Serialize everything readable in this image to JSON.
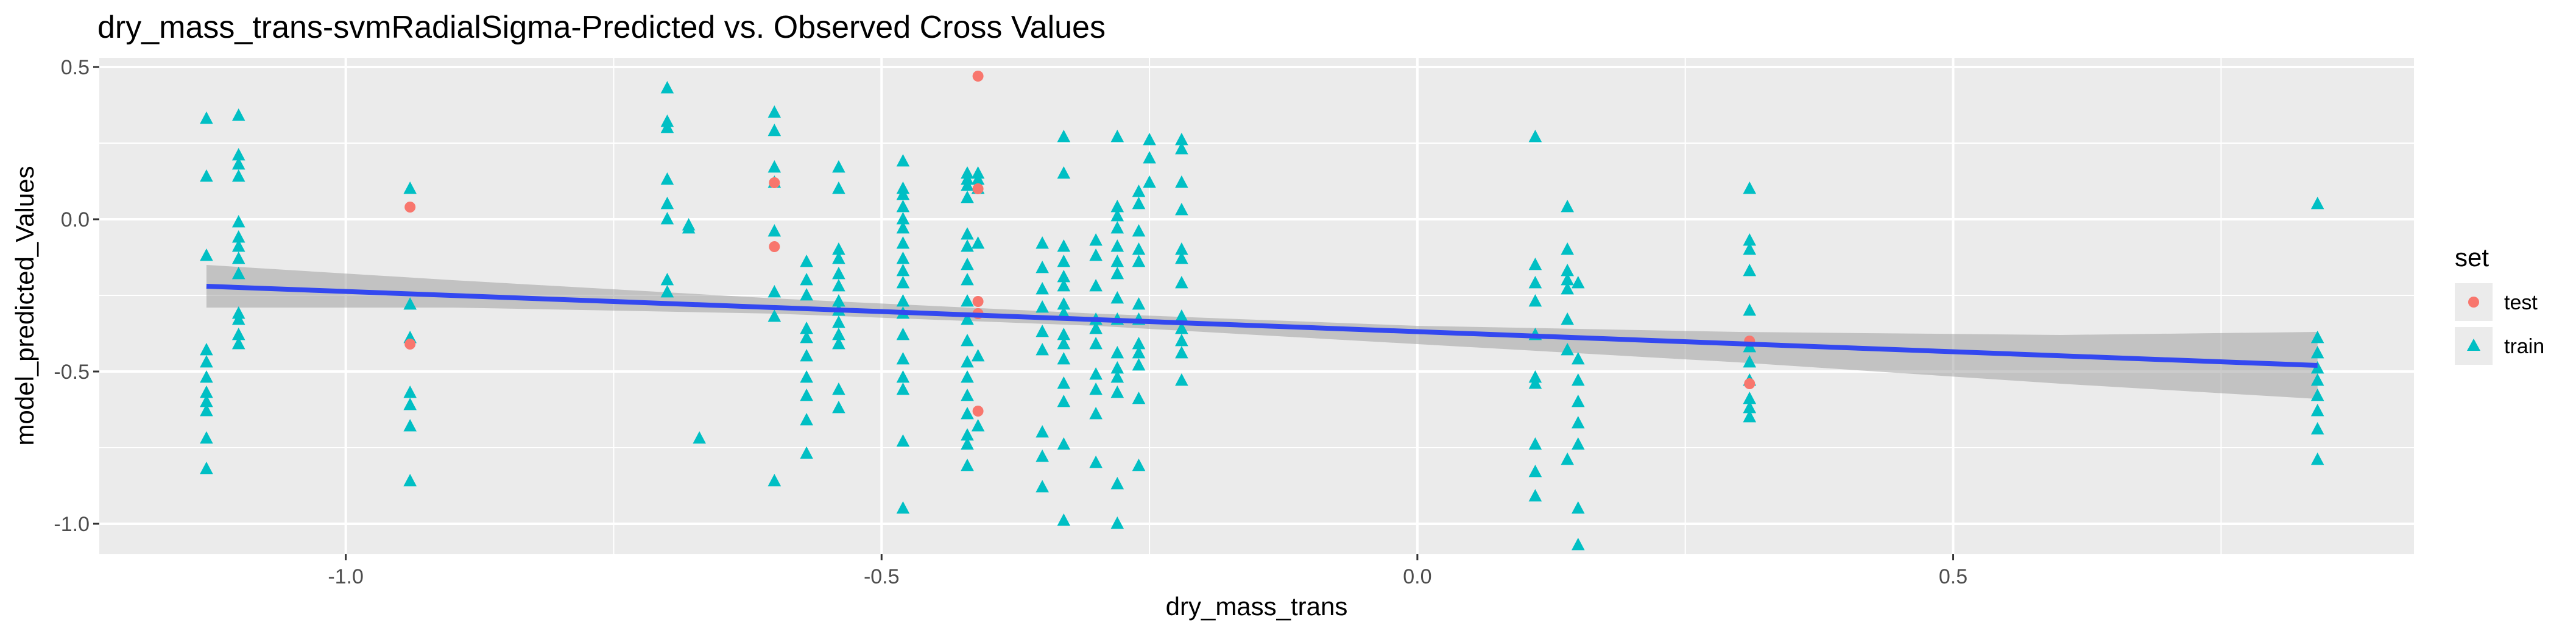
{
  "chart_data": {
    "type": "scatter",
    "title": "dry_mass_trans-svmRadialSigma-Predicted vs. Observed Cross Values",
    "xlabel": "dry_mass_trans",
    "ylabel": "model_predicted_Values",
    "xlim": [
      -1.23,
      0.93
    ],
    "ylim": [
      -1.1,
      0.53
    ],
    "x_ticks": [
      -1.0,
      -0.5,
      0.0,
      0.5
    ],
    "x_tick_labels": [
      "-1.0",
      "-0.5",
      "0.0",
      "0.5"
    ],
    "y_ticks": [
      0.5,
      0.0,
      -0.5,
      -1.0
    ],
    "y_tick_labels": [
      "0.5",
      "0.0",
      "-0.5",
      "-1.0"
    ],
    "grid": true,
    "legend": {
      "title": "set",
      "position": "right",
      "entries": [
        {
          "label": "test",
          "shape": "circle",
          "color": "#F8766D"
        },
        {
          "label": "train",
          "shape": "triangle",
          "color": "#00BFC4"
        }
      ]
    },
    "series": [
      {
        "name": "test",
        "color": "#F8766D",
        "shape": "circle",
        "points": [
          [
            -0.94,
            0.04
          ],
          [
            -0.94,
            -0.41
          ],
          [
            -0.6,
            0.12
          ],
          [
            -0.6,
            -0.09
          ],
          [
            -0.41,
            0.47
          ],
          [
            -0.41,
            0.1
          ],
          [
            -0.41,
            -0.27
          ],
          [
            -0.41,
            -0.31
          ],
          [
            -0.41,
            -0.63
          ],
          [
            0.31,
            -0.4
          ],
          [
            0.31,
            -0.54
          ]
        ]
      },
      {
        "name": "train",
        "color": "#00BFC4",
        "shape": "triangle",
        "points": [
          [
            -1.13,
            0.33
          ],
          [
            -1.13,
            0.14
          ],
          [
            -1.13,
            -0.12
          ],
          [
            -1.13,
            -0.43
          ],
          [
            -1.13,
            -0.47
          ],
          [
            -1.13,
            -0.52
          ],
          [
            -1.13,
            -0.57
          ],
          [
            -1.13,
            -0.6
          ],
          [
            -1.13,
            -0.63
          ],
          [
            -1.13,
            -0.72
          ],
          [
            -1.13,
            -0.82
          ],
          [
            -1.1,
            0.34
          ],
          [
            -1.1,
            0.21
          ],
          [
            -1.1,
            0.18
          ],
          [
            -1.1,
            0.14
          ],
          [
            -1.1,
            -0.01
          ],
          [
            -1.1,
            -0.06
          ],
          [
            -1.1,
            -0.09
          ],
          [
            -1.1,
            -0.13
          ],
          [
            -1.1,
            -0.18
          ],
          [
            -1.1,
            -0.31
          ],
          [
            -1.1,
            -0.33
          ],
          [
            -1.1,
            -0.38
          ],
          [
            -1.1,
            -0.41
          ],
          [
            -0.94,
            0.1
          ],
          [
            -0.94,
            -0.28
          ],
          [
            -0.94,
            -0.39
          ],
          [
            -0.94,
            -0.57
          ],
          [
            -0.94,
            -0.61
          ],
          [
            -0.94,
            -0.68
          ],
          [
            -0.94,
            -0.86
          ],
          [
            -0.7,
            0.43
          ],
          [
            -0.7,
            0.32
          ],
          [
            -0.7,
            0.3
          ],
          [
            -0.7,
            0.13
          ],
          [
            -0.7,
            0.05
          ],
          [
            -0.7,
            0.0
          ],
          [
            -0.7,
            -0.2
          ],
          [
            -0.7,
            -0.24
          ],
          [
            -0.68,
            -0.02
          ],
          [
            -0.68,
            -0.03
          ],
          [
            -0.67,
            -0.72
          ],
          [
            -0.6,
            0.35
          ],
          [
            -0.6,
            0.29
          ],
          [
            -0.6,
            0.17
          ],
          [
            -0.6,
            0.12
          ],
          [
            -0.6,
            -0.04
          ],
          [
            -0.6,
            -0.24
          ],
          [
            -0.6,
            -0.32
          ],
          [
            -0.6,
            -0.86
          ],
          [
            -0.57,
            -0.14
          ],
          [
            -0.57,
            -0.2
          ],
          [
            -0.57,
            -0.25
          ],
          [
            -0.57,
            -0.36
          ],
          [
            -0.57,
            -0.39
          ],
          [
            -0.57,
            -0.45
          ],
          [
            -0.57,
            -0.52
          ],
          [
            -0.57,
            -0.58
          ],
          [
            -0.57,
            -0.66
          ],
          [
            -0.57,
            -0.77
          ],
          [
            -0.54,
            0.17
          ],
          [
            -0.54,
            0.1
          ],
          [
            -0.54,
            -0.1
          ],
          [
            -0.54,
            -0.13
          ],
          [
            -0.54,
            -0.18
          ],
          [
            -0.54,
            -0.22
          ],
          [
            -0.54,
            -0.27
          ],
          [
            -0.54,
            -0.3
          ],
          [
            -0.54,
            -0.34
          ],
          [
            -0.54,
            -0.38
          ],
          [
            -0.54,
            -0.41
          ],
          [
            -0.54,
            -0.56
          ],
          [
            -0.54,
            -0.62
          ],
          [
            -0.48,
            0.19
          ],
          [
            -0.48,
            0.1
          ],
          [
            -0.48,
            0.08
          ],
          [
            -0.48,
            0.04
          ],
          [
            -0.48,
            0.0
          ],
          [
            -0.48,
            -0.03
          ],
          [
            -0.48,
            -0.08
          ],
          [
            -0.48,
            -0.13
          ],
          [
            -0.48,
            -0.17
          ],
          [
            -0.48,
            -0.21
          ],
          [
            -0.48,
            -0.27
          ],
          [
            -0.48,
            -0.31
          ],
          [
            -0.48,
            -0.38
          ],
          [
            -0.48,
            -0.46
          ],
          [
            -0.48,
            -0.52
          ],
          [
            -0.48,
            -0.56
          ],
          [
            -0.48,
            -0.73
          ],
          [
            -0.48,
            -0.95
          ],
          [
            -0.42,
            0.15
          ],
          [
            -0.42,
            0.13
          ],
          [
            -0.42,
            0.11
          ],
          [
            -0.42,
            0.07
          ],
          [
            -0.42,
            -0.05
          ],
          [
            -0.42,
            -0.09
          ],
          [
            -0.42,
            -0.15
          ],
          [
            -0.42,
            -0.2
          ],
          [
            -0.42,
            -0.27
          ],
          [
            -0.42,
            -0.33
          ],
          [
            -0.42,
            -0.4
          ],
          [
            -0.42,
            -0.47
          ],
          [
            -0.42,
            -0.52
          ],
          [
            -0.42,
            -0.58
          ],
          [
            -0.42,
            -0.64
          ],
          [
            -0.42,
            -0.71
          ],
          [
            -0.42,
            -0.74
          ],
          [
            -0.42,
            -0.81
          ],
          [
            -0.41,
            0.15
          ],
          [
            -0.41,
            0.13
          ],
          [
            -0.41,
            0.1
          ],
          [
            -0.41,
            -0.08
          ],
          [
            -0.41,
            -0.45
          ],
          [
            -0.41,
            -0.68
          ],
          [
            -0.35,
            -0.08
          ],
          [
            -0.35,
            -0.16
          ],
          [
            -0.35,
            -0.23
          ],
          [
            -0.35,
            -0.29
          ],
          [
            -0.35,
            -0.37
          ],
          [
            -0.35,
            -0.43
          ],
          [
            -0.35,
            -0.7
          ],
          [
            -0.35,
            -0.78
          ],
          [
            -0.35,
            -0.88
          ],
          [
            -0.33,
            0.27
          ],
          [
            -0.33,
            0.15
          ],
          [
            -0.33,
            -0.09
          ],
          [
            -0.33,
            -0.14
          ],
          [
            -0.33,
            -0.19
          ],
          [
            -0.33,
            -0.22
          ],
          [
            -0.33,
            -0.28
          ],
          [
            -0.33,
            -0.31
          ],
          [
            -0.33,
            -0.38
          ],
          [
            -0.33,
            -0.41
          ],
          [
            -0.33,
            -0.46
          ],
          [
            -0.33,
            -0.54
          ],
          [
            -0.33,
            -0.6
          ],
          [
            -0.33,
            -0.74
          ],
          [
            -0.33,
            -0.99
          ],
          [
            -0.3,
            -0.07
          ],
          [
            -0.3,
            -0.12
          ],
          [
            -0.3,
            -0.22
          ],
          [
            -0.3,
            -0.33
          ],
          [
            -0.3,
            -0.36
          ],
          [
            -0.3,
            -0.41
          ],
          [
            -0.3,
            -0.51
          ],
          [
            -0.3,
            -0.56
          ],
          [
            -0.3,
            -0.64
          ],
          [
            -0.3,
            -0.8
          ],
          [
            -0.28,
            0.27
          ],
          [
            -0.28,
            0.04
          ],
          [
            -0.28,
            0.01
          ],
          [
            -0.28,
            -0.03
          ],
          [
            -0.28,
            -0.09
          ],
          [
            -0.28,
            -0.14
          ],
          [
            -0.28,
            -0.18
          ],
          [
            -0.28,
            -0.26
          ],
          [
            -0.28,
            -0.33
          ],
          [
            -0.28,
            -0.44
          ],
          [
            -0.28,
            -0.49
          ],
          [
            -0.28,
            -0.52
          ],
          [
            -0.28,
            -0.57
          ],
          [
            -0.28,
            -0.87
          ],
          [
            -0.28,
            -1.0
          ],
          [
            -0.26,
            0.09
          ],
          [
            -0.26,
            0.05
          ],
          [
            -0.26,
            -0.04
          ],
          [
            -0.26,
            -0.1
          ],
          [
            -0.26,
            -0.14
          ],
          [
            -0.26,
            -0.28
          ],
          [
            -0.26,
            -0.33
          ],
          [
            -0.26,
            -0.41
          ],
          [
            -0.26,
            -0.44
          ],
          [
            -0.26,
            -0.48
          ],
          [
            -0.26,
            -0.59
          ],
          [
            -0.26,
            -0.81
          ],
          [
            -0.25,
            0.26
          ],
          [
            -0.25,
            0.2
          ],
          [
            -0.25,
            0.12
          ],
          [
            -0.22,
            0.26
          ],
          [
            -0.22,
            0.23
          ],
          [
            -0.22,
            0.12
          ],
          [
            -0.22,
            0.03
          ],
          [
            -0.22,
            -0.1
          ],
          [
            -0.22,
            -0.13
          ],
          [
            -0.22,
            -0.21
          ],
          [
            -0.22,
            -0.32
          ],
          [
            -0.22,
            -0.36
          ],
          [
            -0.22,
            -0.4
          ],
          [
            -0.22,
            -0.44
          ],
          [
            -0.22,
            -0.53
          ],
          [
            0.11,
            0.27
          ],
          [
            0.11,
            -0.15
          ],
          [
            0.11,
            -0.21
          ],
          [
            0.11,
            -0.27
          ],
          [
            0.11,
            -0.38
          ],
          [
            0.11,
            -0.52
          ],
          [
            0.11,
            -0.54
          ],
          [
            0.11,
            -0.74
          ],
          [
            0.11,
            -0.83
          ],
          [
            0.11,
            -0.91
          ],
          [
            0.14,
            0.04
          ],
          [
            0.14,
            -0.1
          ],
          [
            0.14,
            -0.17
          ],
          [
            0.14,
            -0.2
          ],
          [
            0.14,
            -0.23
          ],
          [
            0.14,
            -0.33
          ],
          [
            0.14,
            -0.43
          ],
          [
            0.14,
            -0.79
          ],
          [
            0.15,
            -0.21
          ],
          [
            0.15,
            -0.46
          ],
          [
            0.15,
            -0.53
          ],
          [
            0.15,
            -0.6
          ],
          [
            0.15,
            -0.67
          ],
          [
            0.15,
            -0.74
          ],
          [
            0.15,
            -0.95
          ],
          [
            0.15,
            -1.07
          ],
          [
            0.31,
            0.1
          ],
          [
            0.31,
            -0.07
          ],
          [
            0.31,
            -0.1
          ],
          [
            0.31,
            -0.17
          ],
          [
            0.31,
            -0.3
          ],
          [
            0.31,
            -0.42
          ],
          [
            0.31,
            -0.47
          ],
          [
            0.31,
            -0.53
          ],
          [
            0.31,
            -0.59
          ],
          [
            0.31,
            -0.62
          ],
          [
            0.31,
            -0.65
          ],
          [
            0.84,
            0.05
          ],
          [
            0.84,
            -0.39
          ],
          [
            0.84,
            -0.44
          ],
          [
            0.84,
            -0.49
          ],
          [
            0.84,
            -0.53
          ],
          [
            0.84,
            -0.58
          ],
          [
            0.84,
            -0.63
          ],
          [
            0.84,
            -0.69
          ],
          [
            0.84,
            -0.79
          ]
        ]
      }
    ],
    "fit_line": {
      "color": "#3348F0",
      "x": [
        -1.13,
        0.84
      ],
      "y": [
        -0.22,
        -0.48
      ]
    },
    "confidence_band": {
      "color": "#999999",
      "x": [
        -1.13,
        -0.9,
        -0.6,
        -0.3,
        0.0,
        0.3,
        0.6,
        0.84
      ],
      "upper": [
        -0.15,
        -0.2,
        -0.26,
        -0.31,
        -0.35,
        -0.37,
        -0.38,
        -0.37
      ],
      "lower": [
        -0.29,
        -0.29,
        -0.31,
        -0.35,
        -0.41,
        -0.47,
        -0.54,
        -0.59
      ]
    },
    "colors": {
      "panel_background": "#EBEBEB",
      "grid_major": "#FFFFFF"
    }
  }
}
